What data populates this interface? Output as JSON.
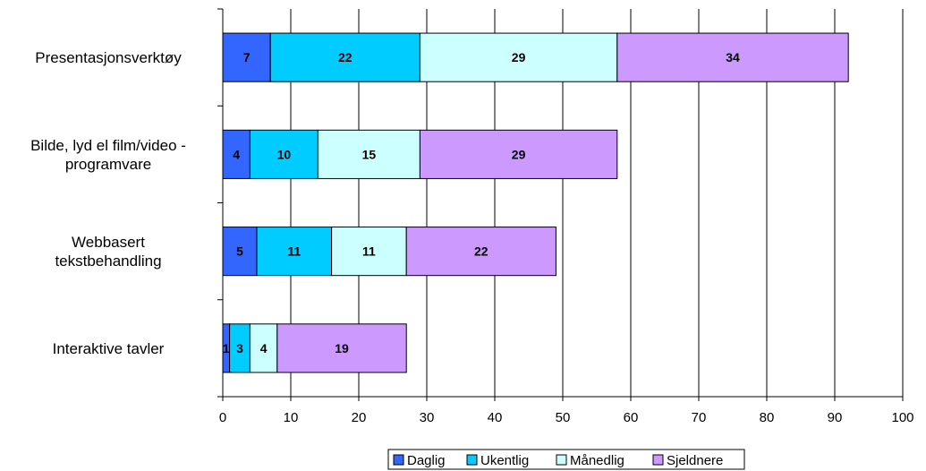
{
  "chart_data": {
    "type": "bar",
    "orientation": "horizontal",
    "stacked": true,
    "categories": [
      [
        "Presentasjonsverktøy"
      ],
      [
        "Bilde, lyd el film/video -",
        "programvare"
      ],
      [
        "Webbasert",
        "tekstbehandling"
      ],
      [
        "Interaktive tavler"
      ]
    ],
    "series": [
      {
        "name": "Daglig",
        "color": "#3366ff",
        "values": [
          7,
          4,
          5,
          1
        ]
      },
      {
        "name": "Ukentlig",
        "color": "#00ccff",
        "values": [
          22,
          10,
          11,
          3
        ]
      },
      {
        "name": "Månedlig",
        "color": "#ccffff",
        "values": [
          29,
          15,
          11,
          4
        ]
      },
      {
        "name": "Sjeldnere",
        "color": "#cc99ff",
        "values": [
          34,
          29,
          22,
          19
        ]
      }
    ],
    "xlim": [
      0,
      100
    ],
    "xticks": [
      0,
      10,
      20,
      30,
      40,
      50,
      60,
      70,
      80,
      90,
      100
    ],
    "grid": true,
    "legend_position": "bottom",
    "data_labels": true
  }
}
